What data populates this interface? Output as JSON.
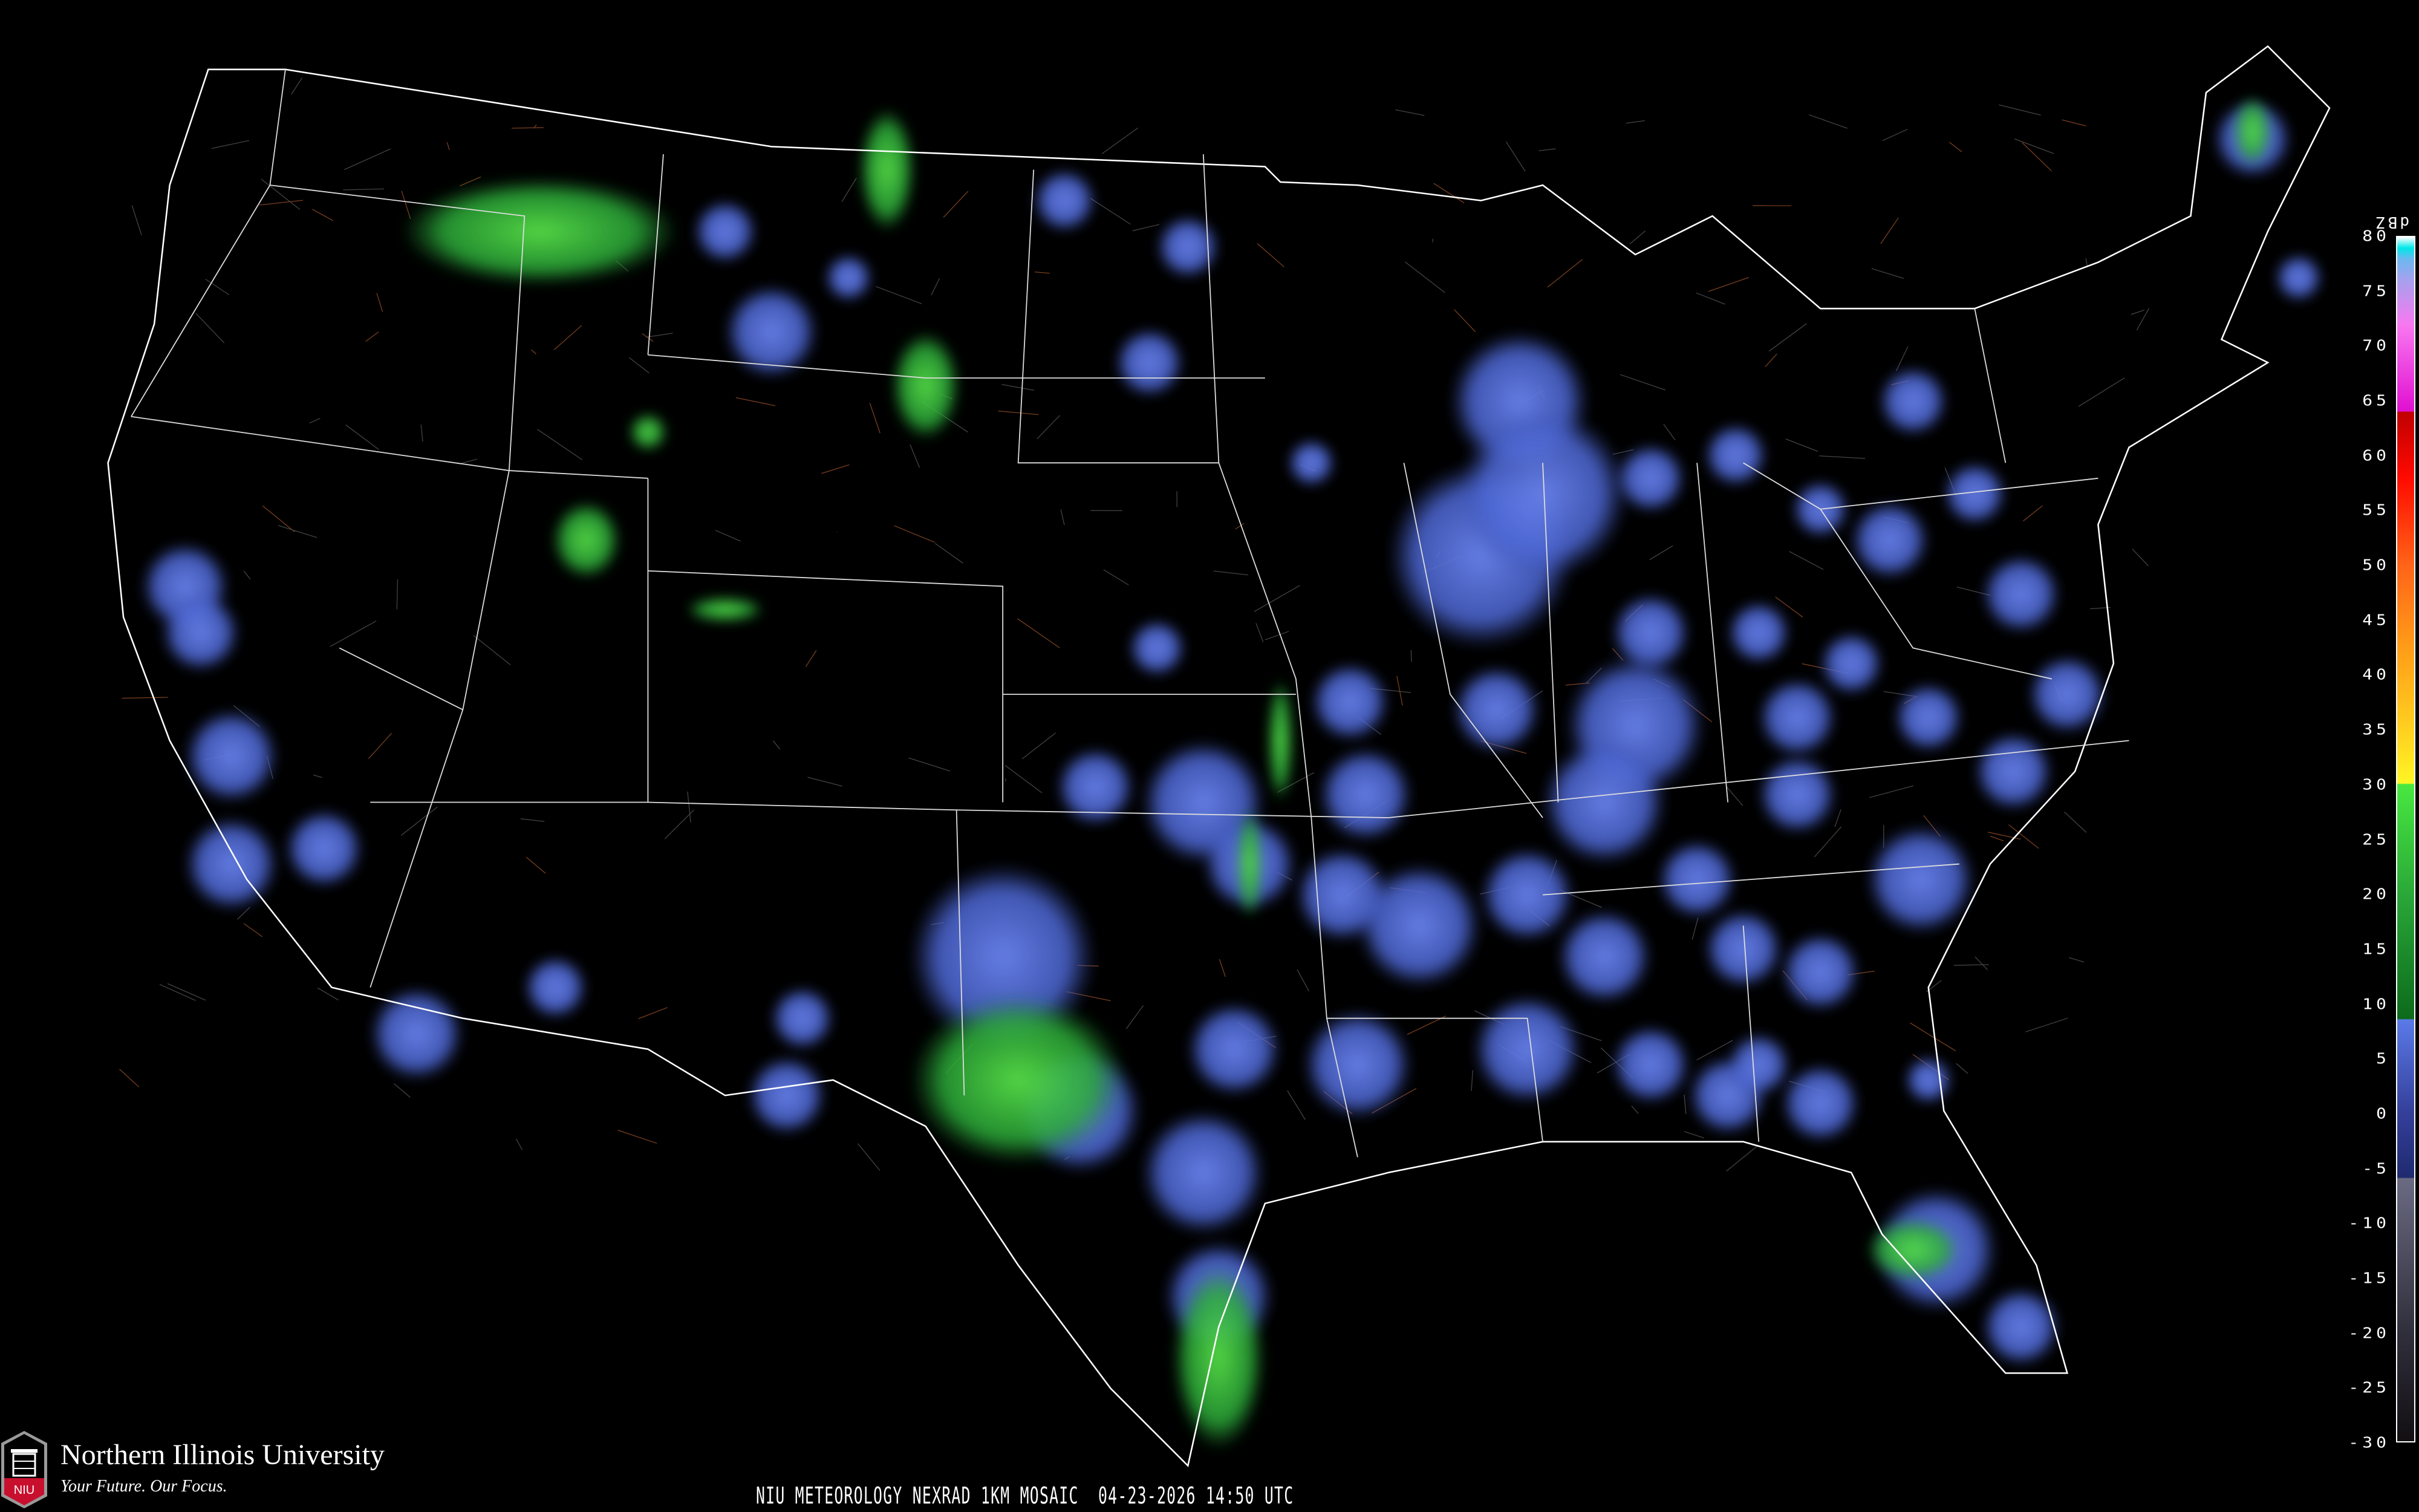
{
  "title": "NIU METEOROLOGY NEXRAD 1KM MOSAIC  04-23-2026 14:50 UTC",
  "logo": {
    "name": "Northern Illinois University",
    "tagline": "Your Future. Our Focus.",
    "mark": "NIU"
  },
  "colorbar": {
    "unit": "dBZ",
    "min": -30,
    "max": 80,
    "ticks": [
      "80",
      "75",
      "70",
      "65",
      "60",
      "55",
      "50",
      "45",
      "40",
      "35",
      "30",
      "25",
      "20",
      "15",
      "10",
      "5",
      "0",
      "-5",
      "-10",
      "-15",
      "-20",
      "-25",
      "-30"
    ],
    "color_stops": [
      {
        "dbz": -32,
        "color": "#120e12"
      },
      {
        "dbz": -20,
        "color": "#302f3c"
      },
      {
        "dbz": -6,
        "color": "#6a6a82"
      },
      {
        "dbz": -5.9,
        "color": "#1f2a70"
      },
      {
        "dbz": 0,
        "color": "#343f9a"
      },
      {
        "dbz": 8.5,
        "color": "#5a7ae8"
      },
      {
        "dbz": 8.6,
        "color": "#0c6a1c"
      },
      {
        "dbz": 20,
        "color": "#2aa838"
      },
      {
        "dbz": 30,
        "color": "#48e840"
      },
      {
        "dbz": 30.1,
        "color": "#fff524"
      },
      {
        "dbz": 35,
        "color": "#ffd020"
      },
      {
        "dbz": 42,
        "color": "#ffa018"
      },
      {
        "dbz": 50,
        "color": "#ff6418"
      },
      {
        "dbz": 58,
        "color": "#ff0a00"
      },
      {
        "dbz": 64,
        "color": "#c00000"
      },
      {
        "dbz": 64.1,
        "color": "#e010d0"
      },
      {
        "dbz": 72,
        "color": "#f878f0"
      },
      {
        "dbz": 76,
        "color": "#a8a0ee"
      },
      {
        "dbz": 78,
        "color": "#6cb8f0"
      },
      {
        "dbz": 79,
        "color": "#00e8e8"
      },
      {
        "dbz": 80,
        "color": "#ffffff"
      }
    ]
  },
  "colors": {
    "background": "#000000",
    "boundaries": "#ffffff",
    "county_lines": "#555555",
    "roads": "#8a4a20",
    "light_echo": "#4e6ad8",
    "moderate_echo": "#2eaa3a",
    "niu_red": "#c8102e"
  }
}
